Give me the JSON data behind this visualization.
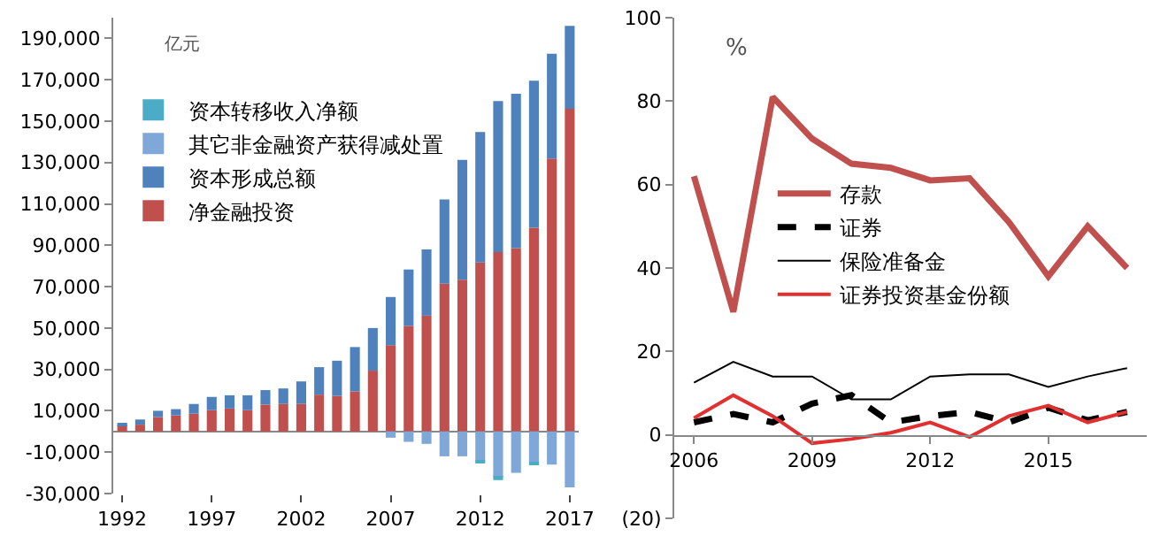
{
  "chart_data": [
    {
      "type": "bar",
      "stacked": true,
      "ylabel": "亿元",
      "legend": "top left",
      "grid": false,
      "categories": [
        "1992",
        null,
        null,
        null,
        null,
        "1997",
        null,
        null,
        null,
        null,
        "2002",
        null,
        null,
        null,
        null,
        "2007",
        null,
        null,
        null,
        null,
        "2012",
        null,
        null,
        null,
        null,
        "2017"
      ],
      "ylim": [
        -30000,
        200000
      ],
      "yticks": [
        {
          "value": -30000,
          "label": "-30,000"
        },
        {
          "value": -10000,
          "label": "-10,000"
        },
        {
          "value": 10000,
          "label": "10,000"
        },
        {
          "value": 30000,
          "label": "30,000"
        },
        {
          "value": 50000,
          "label": "50,000"
        },
        {
          "value": 70000,
          "label": "70,000"
        },
        {
          "value": 90000,
          "label": "90,000"
        },
        {
          "value": 110000,
          "label": "110,000"
        },
        {
          "value": 130000,
          "label": "130,000"
        },
        {
          "value": 150000,
          "label": "150,000"
        },
        {
          "value": 170000,
          "label": "170,000"
        },
        {
          "value": 190000,
          "label": "190,000"
        }
      ],
      "series": [
        {
          "name": "净金融投资",
          "color": "#c0504d",
          "values": [
            3300,
            3300,
            7000,
            7800,
            8600,
            10300,
            11100,
            10300,
            13000,
            13300,
            13300,
            17800,
            17200,
            19400,
            29400,
            41700,
            51000,
            56000,
            71400,
            73300,
            81700,
            86700,
            88600,
            98500,
            131900,
            156000
          ]
        },
        {
          "name": "资本形成总额",
          "color": "#4f81bd",
          "values": [
            300,
            2500,
            3000,
            3000,
            4700,
            6400,
            6400,
            7200,
            7000,
            7500,
            10900,
            13300,
            17000,
            21400,
            20600,
            23300,
            27300,
            32000,
            40800,
            58000,
            63000,
            73000,
            74600,
            71000,
            50700,
            40000
          ]
        },
        {
          "name": "其它非金融资产获得减处置",
          "color": "#7fa7d8",
          "values": [
            0,
            0,
            0,
            0,
            0,
            0,
            0,
            0,
            0,
            0,
            0,
            0,
            0,
            0,
            0,
            -3000,
            -5000,
            -6000,
            -12000,
            -12000,
            -14000,
            -22000,
            -20000,
            -15000,
            -16000,
            -27000
          ]
        },
        {
          "name": "资本转移收入净额",
          "color": "#4bacc6",
          "values": [
            0,
            0,
            0,
            0,
            0,
            0,
            0,
            0,
            0,
            0,
            0,
            0,
            0,
            0,
            0,
            0,
            0,
            0,
            0,
            0,
            -1000,
            -1500,
            0,
            -1000,
            0,
            0
          ]
        }
      ]
    },
    {
      "type": "line",
      "ylabel": "%",
      "legend": "center",
      "grid": false,
      "x": [
        2006,
        2007,
        2008,
        2009,
        2010,
        2011,
        2012,
        2013,
        2014,
        2015,
        2016,
        2017
      ],
      "xlim": [
        2005.5,
        2017.5
      ],
      "xticks": [
        2006,
        2009,
        2012,
        2015
      ],
      "ylim": [
        -20,
        100
      ],
      "yticks": [
        {
          "value": -20,
          "label": "(20)"
        },
        0,
        20,
        40,
        60,
        80,
        100
      ],
      "series": [
        {
          "name": "存款",
          "color": "#c0504d",
          "line_style": "solid",
          "values": [
            62,
            29.5,
            81,
            71,
            65,
            64,
            61,
            61.5,
            51,
            38,
            50,
            40
          ]
        },
        {
          "name": "证券",
          "color": "#000000",
          "line_style": "dashed",
          "values": [
            3,
            5,
            3,
            7.5,
            9.5,
            3,
            4.5,
            5.5,
            3,
            6.5,
            3.5,
            5.5
          ]
        },
        {
          "name": "保险准备金",
          "color": "#000000",
          "line_style": "solid",
          "values": [
            12.5,
            17.5,
            14,
            14,
            8.5,
            8.5,
            14,
            14.5,
            14.5,
            11.5,
            14,
            16
          ]
        },
        {
          "name": "证券投资基金份额",
          "color": "#e03030",
          "line_style": "solid",
          "values": [
            4,
            9.5,
            4.5,
            -2,
            -1,
            0.5,
            3,
            -0.5,
            4.5,
            7,
            3,
            5.5
          ]
        }
      ]
    }
  ]
}
